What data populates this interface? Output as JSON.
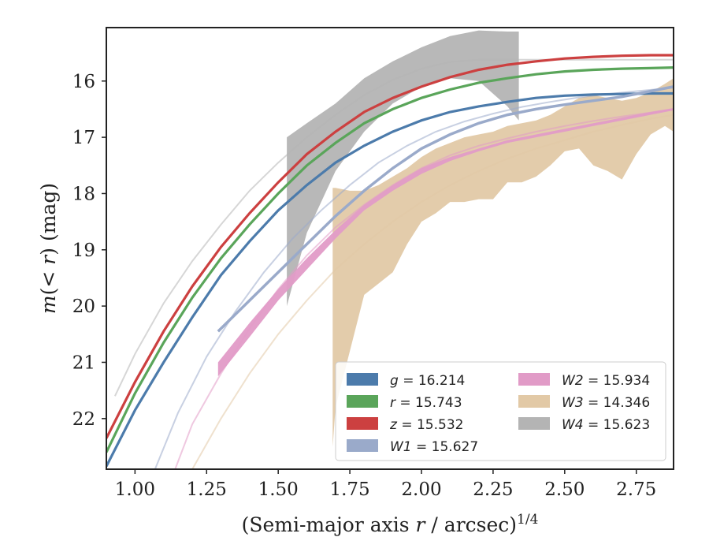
{
  "chart_data": {
    "type": "line",
    "xlabel": "(Semi-major axis r / arcsec)^{1/4}",
    "ylabel": "m(< r) (mag)",
    "xlim": [
      0.9,
      2.88
    ],
    "ylim": [
      22.9,
      15.05
    ],
    "y_inverted": true,
    "xticks": [
      1.0,
      1.25,
      1.5,
      1.75,
      2.0,
      2.25,
      2.5,
      2.75
    ],
    "xtick_labels": [
      "1.00",
      "1.25",
      "1.50",
      "1.75",
      "2.00",
      "2.25",
      "2.50",
      "2.75"
    ],
    "yticks": [
      16,
      17,
      18,
      19,
      20,
      21,
      22
    ],
    "ytick_labels": [
      "16",
      "17",
      "18",
      "19",
      "20",
      "21",
      "22"
    ],
    "grid": false,
    "legend_position": "lower-right",
    "legend_columns": 2,
    "series": [
      {
        "name": "g = 16.214",
        "band": "g",
        "total_mag": "16.214",
        "color": "#4c7bab",
        "kind": "line_with_model",
        "x": [
          0.9,
          1.0,
          1.1,
          1.2,
          1.3,
          1.4,
          1.5,
          1.6,
          1.7,
          1.8,
          1.9,
          2.0,
          2.1,
          2.2,
          2.3,
          2.4,
          2.5,
          2.6,
          2.7,
          2.8,
          2.88
        ],
        "y": [
          22.85,
          21.85,
          21.0,
          20.2,
          19.45,
          18.85,
          18.3,
          17.85,
          17.45,
          17.15,
          16.9,
          16.7,
          16.55,
          16.45,
          16.37,
          16.3,
          16.26,
          16.24,
          16.23,
          16.22,
          16.22
        ]
      },
      {
        "name": "r = 15.743",
        "band": "r",
        "total_mag": "15.743",
        "color": "#5aa55a",
        "kind": "line_with_model",
        "x": [
          0.9,
          1.0,
          1.1,
          1.2,
          1.3,
          1.4,
          1.5,
          1.6,
          1.7,
          1.8,
          1.9,
          2.0,
          2.1,
          2.2,
          2.3,
          2.4,
          2.5,
          2.6,
          2.7,
          2.8,
          2.88
        ],
        "y": [
          22.6,
          21.55,
          20.65,
          19.85,
          19.15,
          18.55,
          18.0,
          17.5,
          17.1,
          16.75,
          16.5,
          16.3,
          16.15,
          16.03,
          15.95,
          15.88,
          15.83,
          15.8,
          15.78,
          15.77,
          15.76
        ]
      },
      {
        "name": "z = 15.532",
        "band": "z",
        "total_mag": "15.532",
        "color": "#cc4040",
        "kind": "line_with_model",
        "x": [
          0.9,
          1.0,
          1.1,
          1.2,
          1.3,
          1.4,
          1.5,
          1.6,
          1.7,
          1.8,
          1.9,
          2.0,
          2.1,
          2.2,
          2.3,
          2.4,
          2.5,
          2.6,
          2.7,
          2.8,
          2.88
        ],
        "y": [
          22.35,
          21.35,
          20.45,
          19.65,
          18.95,
          18.35,
          17.8,
          17.3,
          16.9,
          16.55,
          16.3,
          16.1,
          15.93,
          15.8,
          15.71,
          15.65,
          15.6,
          15.57,
          15.55,
          15.54,
          15.54
        ]
      },
      {
        "name": "W1 = 15.627",
        "band": "W1",
        "total_mag": "15.627",
        "color": "#9aaaca",
        "kind": "band_with_model",
        "x": [
          1.29,
          1.4,
          1.5,
          1.6,
          1.7,
          1.8,
          1.9,
          2.0,
          2.1,
          2.2,
          2.3,
          2.4,
          2.5,
          2.6,
          2.7,
          2.8,
          2.88
        ],
        "y": [
          20.45,
          19.9,
          19.4,
          18.9,
          18.4,
          17.95,
          17.55,
          17.2,
          16.95,
          16.75,
          16.6,
          16.5,
          16.42,
          16.35,
          16.28,
          16.18,
          16.1
        ],
        "model_x": [
          1.07,
          1.15,
          1.25,
          1.35,
          1.45,
          1.55,
          1.65,
          1.75,
          1.85,
          1.95,
          2.05,
          2.15,
          2.25,
          2.35,
          2.45,
          2.55,
          2.65,
          2.75,
          2.88
        ],
        "model_y": [
          22.9,
          21.9,
          20.9,
          20.1,
          19.4,
          18.8,
          18.3,
          17.85,
          17.45,
          17.15,
          16.9,
          16.72,
          16.58,
          16.46,
          16.37,
          16.29,
          16.23,
          16.18,
          16.12
        ]
      },
      {
        "name": "W2 = 15.934",
        "band": "W2",
        "total_mag": "15.934",
        "color": "#e19bc7",
        "kind": "band_with_model",
        "x": [
          1.29,
          1.4,
          1.5,
          1.6,
          1.7,
          1.8,
          1.9,
          2.0,
          2.1,
          2.2,
          2.3,
          2.4,
          2.5,
          2.6,
          2.7,
          2.8,
          2.88
        ],
        "y_upper": [
          21.0,
          20.3,
          19.7,
          19.15,
          18.65,
          18.2,
          17.85,
          17.55,
          17.35,
          17.2,
          17.05,
          16.95,
          16.85,
          16.75,
          16.65,
          16.55,
          16.48
        ],
        "y_lower": [
          21.25,
          20.55,
          19.9,
          19.35,
          18.8,
          18.3,
          17.95,
          17.65,
          17.42,
          17.25,
          17.1,
          17.0,
          16.9,
          16.8,
          16.7,
          16.6,
          16.52
        ],
        "model_x": [
          1.14,
          1.2,
          1.3,
          1.4,
          1.5,
          1.6,
          1.7,
          1.8,
          1.9,
          2.0,
          2.1,
          2.2,
          2.3,
          2.4,
          2.5,
          2.6,
          2.7,
          2.8,
          2.88
        ],
        "model_y": [
          22.9,
          22.1,
          21.2,
          20.4,
          19.7,
          19.1,
          18.6,
          18.2,
          17.85,
          17.55,
          17.32,
          17.15,
          17.02,
          16.9,
          16.8,
          16.71,
          16.63,
          16.56,
          16.5
        ]
      },
      {
        "name": "W3 = 14.346",
        "band": "W3",
        "total_mag": "14.346",
        "color": "#e2c9a6",
        "kind": "band_with_model",
        "x": [
          1.69,
          1.7,
          1.75,
          1.8,
          1.85,
          1.9,
          1.95,
          2.0,
          2.05,
          2.1,
          2.15,
          2.2,
          2.25,
          2.3,
          2.35,
          2.4,
          2.45,
          2.5,
          2.55,
          2.6,
          2.65,
          2.7,
          2.75,
          2.8,
          2.85,
          2.88
        ],
        "y_upper": [
          17.9,
          17.9,
          17.95,
          17.95,
          17.85,
          17.7,
          17.55,
          17.35,
          17.2,
          17.1,
          17.0,
          16.95,
          16.9,
          16.8,
          16.75,
          16.7,
          16.6,
          16.45,
          16.3,
          16.25,
          16.3,
          16.35,
          16.3,
          16.2,
          16.05,
          15.95
        ],
        "y_lower": [
          22.5,
          21.8,
          20.8,
          19.8,
          19.6,
          19.4,
          18.9,
          18.5,
          18.35,
          18.15,
          18.15,
          18.1,
          18.1,
          17.8,
          17.8,
          17.7,
          17.5,
          17.25,
          17.2,
          17.5,
          17.6,
          17.75,
          17.3,
          16.95,
          16.8,
          16.9
        ],
        "model_x": [
          1.2,
          1.3,
          1.4,
          1.5,
          1.6,
          1.7,
          1.8,
          1.9,
          2.0,
          2.1,
          2.2,
          2.3,
          2.4,
          2.5,
          2.6,
          2.7,
          2.8,
          2.88
        ],
        "model_y": [
          22.9,
          22.0,
          21.2,
          20.5,
          19.9,
          19.35,
          18.9,
          18.5,
          18.15,
          17.85,
          17.6,
          17.38,
          17.2,
          17.05,
          16.9,
          16.78,
          16.67,
          16.6
        ]
      },
      {
        "name": "W4 = 15.623",
        "band": "W4",
        "total_mag": "15.623",
        "color": "#b4b4b4",
        "kind": "band_with_model",
        "x": [
          1.53,
          1.6,
          1.7,
          1.8,
          1.9,
          2.0,
          2.1,
          2.2,
          2.3,
          2.34
        ],
        "y_upper": [
          17.0,
          16.75,
          16.4,
          15.95,
          15.65,
          15.4,
          15.2,
          15.1,
          15.12,
          15.12
        ],
        "y_lower": [
          20.0,
          18.7,
          17.6,
          16.9,
          16.4,
          16.1,
          15.95,
          16.0,
          16.45,
          16.7
        ],
        "model_x": [
          0.93,
          1.0,
          1.1,
          1.2,
          1.3,
          1.4,
          1.5,
          1.6,
          1.7,
          1.8,
          1.9,
          2.0,
          2.1,
          2.2,
          2.3,
          2.4,
          2.5,
          2.6,
          2.7,
          2.8,
          2.88
        ],
        "model_y": [
          21.6,
          20.85,
          19.95,
          19.2,
          18.55,
          17.95,
          17.45,
          17.0,
          16.6,
          16.25,
          15.98,
          15.78,
          15.66,
          15.62,
          15.62,
          15.62,
          15.62,
          15.62,
          15.62,
          15.62,
          15.62
        ]
      }
    ]
  }
}
